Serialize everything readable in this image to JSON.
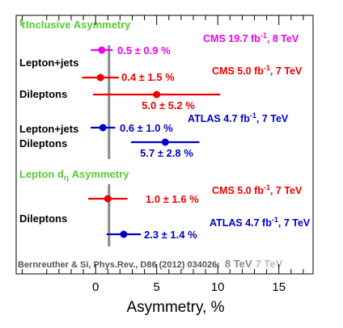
{
  "chart_data": {
    "type": "scatter",
    "title": "",
    "xlabel": "Asymmetry, %",
    "ylabel": "",
    "xlim": [
      -6.5,
      17.8
    ],
    "xticks": [
      0,
      5,
      10,
      15
    ],
    "grid": false,
    "sections": [
      {
        "title_t": "t",
        "title_tbar": "t",
        "title_rest": " Inclusive Asymmetry"
      },
      {
        "title_a": "Lepton  d",
        "title_eta": "η",
        "title_b": " Asymmetry"
      }
    ],
    "channel_labels": [
      "Lepton+jets",
      "Dileptons",
      "Lepton+jets",
      "Dileptons",
      "Dileptons"
    ],
    "experiments": [
      {
        "pre": "CMS 19.7 fb",
        "sup": "-1",
        "post": ", 8 TeV",
        "color": "#ee00ee"
      },
      {
        "pre": "CMS 5.0 fb",
        "sup": "-1",
        "post": ", 7 TeV",
        "color": "#ee0000"
      },
      {
        "pre": "ATLAS 4.7 fb",
        "sup": "-1",
        "post": ", 7 TeV",
        "color": "#0000cc"
      },
      {
        "pre": "CMS 5.0 fb",
        "sup": "-1",
        "post": ", 7 TeV",
        "color": "#ee0000"
      },
      {
        "pre": "ATLAS 4.7 fb",
        "sup": "-1",
        "post": ", 7 TeV",
        "color": "#0000cc"
      }
    ],
    "measurements": [
      {
        "value": 0.5,
        "error": 0.9,
        "label": "0.5 ± 0.9 %",
        "color": "#ee00ee"
      },
      {
        "value": 0.4,
        "error": 1.5,
        "label": "0.4 ± 1.5 %",
        "color": "#ee0000"
      },
      {
        "value": 5.0,
        "error": 5.2,
        "label": "5.0 ± 5.2 %",
        "color": "#ee0000"
      },
      {
        "value": 0.6,
        "error": 1.0,
        "label": "0.6 ± 1.0 %",
        "color": "#0000cc"
      },
      {
        "value": 5.7,
        "error": 2.8,
        "label": "5.7 ± 2.8 %",
        "color": "#0000cc"
      },
      {
        "value": 1.0,
        "error": 1.6,
        "label": "1.0 ± 1.6 %",
        "color": "#ee0000"
      },
      {
        "value": 2.3,
        "error": 1.4,
        "label": "2.3 ± 1.4 %",
        "color": "#0000cc"
      }
    ],
    "theory": {
      "ref": "Bernreuther & Si, Phys.Rev., D86 (2012) 034026:",
      "label_8tev": "8 TeV",
      "label_7tev": "7 TeV",
      "inclusive_value": 1.1,
      "lepton_value": 1.1,
      "color_8tev": "#888888",
      "color_7tev": "#bbbbbb"
    }
  }
}
